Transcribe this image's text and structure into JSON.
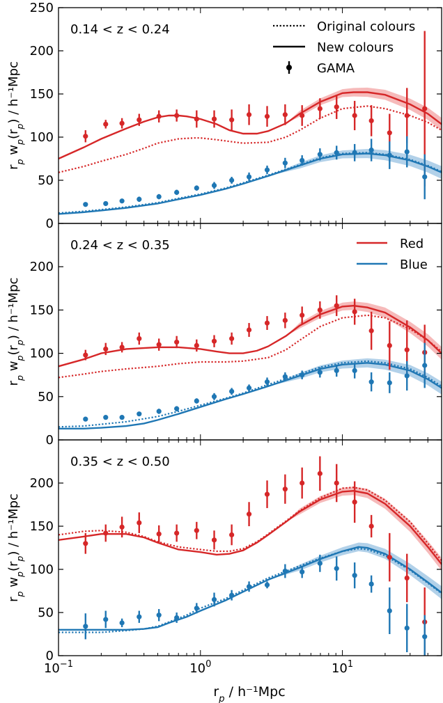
{
  "figure": {
    "ylabel": "r_p w_p(r_p) / h⁻¹Mpc",
    "xlabel": "r_p / h⁻¹Mpc",
    "colors": {
      "red": "#d62728",
      "blue": "#1f77b4",
      "red_band": "#f4a9a9",
      "blue_band": "#9fc6e4",
      "axis": "#000000"
    },
    "legend_style": {
      "entries": [
        "Original colours",
        "New colours",
        "GAMA"
      ],
      "placement": "top-right",
      "panel": 0
    },
    "legend_color": {
      "entries": [
        "Red",
        "Blue"
      ],
      "placement": "top-right",
      "panel": 1
    }
  },
  "chart_data": [
    {
      "type": "line",
      "annotation": "0.14 < z < 0.24",
      "xscale": "log",
      "xlim": [
        0.1,
        50
      ],
      "ylim": [
        0,
        250
      ],
      "yticks": [
        0,
        50,
        100,
        150,
        200,
        250
      ],
      "xtick_labels": [],
      "series": [
        {
          "name": "Red",
          "style": "New colours",
          "color": "red",
          "x": [
            0.1,
            0.15,
            0.2,
            0.3,
            0.4,
            0.5,
            0.6,
            0.7,
            0.8,
            1.0,
            1.3,
            1.6,
            2.0,
            2.5,
            3.0,
            4.0,
            5.0,
            7.0,
            10,
            12,
            15,
            20,
            30,
            40,
            50
          ],
          "y": [
            75,
            88,
            98,
            110,
            118,
            123,
            125,
            125,
            124,
            121,
            115,
            108,
            104,
            104,
            107,
            116,
            127,
            141,
            151,
            152,
            152,
            149,
            138,
            127,
            115
          ]
        },
        {
          "name": "Red",
          "style": "Original colours",
          "color": "red",
          "x": [
            0.1,
            0.15,
            0.2,
            0.3,
            0.4,
            0.5,
            0.7,
            0.9,
            1.0,
            1.3,
            1.6,
            2.0,
            3.0,
            4.0,
            5.0,
            7.0,
            10,
            15,
            20,
            30,
            40,
            50
          ],
          "y": [
            59,
            66,
            72,
            80,
            87,
            93,
            98,
            99,
            99,
            97,
            95,
            93,
            94,
            100,
            108,
            122,
            133,
            136,
            133,
            125,
            117,
            108
          ]
        },
        {
          "name": "Blue",
          "style": "New colours",
          "color": "blue",
          "x": [
            0.1,
            0.15,
            0.2,
            0.3,
            0.5,
            0.7,
            1.0,
            1.5,
            2.0,
            3.0,
            5.0,
            7.0,
            10,
            15,
            20,
            30,
            40,
            50
          ],
          "y": [
            11,
            13,
            15,
            18,
            23,
            28,
            33,
            40,
            46,
            55,
            67,
            75,
            80,
            81,
            79,
            73,
            66,
            59
          ]
        },
        {
          "name": "Blue",
          "style": "Original colours",
          "color": "blue",
          "x": [
            0.1,
            0.15,
            0.2,
            0.3,
            0.5,
            0.7,
            1.0,
            1.5,
            2.0,
            3.0,
            5.0,
            7.0,
            10,
            15,
            20,
            30,
            40,
            50
          ],
          "y": [
            12,
            14,
            16,
            19,
            24,
            29,
            34,
            41,
            47,
            56,
            68,
            76,
            81,
            82,
            80,
            74,
            67,
            60
          ]
        },
        {
          "name": "GAMA",
          "color": "red",
          "kind": "points",
          "x": [
            0.155,
            0.215,
            0.28,
            0.37,
            0.51,
            0.68,
            0.94,
            1.25,
            1.66,
            2.2,
            2.95,
            3.95,
            5.2,
            6.95,
            9.1,
            12.2,
            16.0,
            21.5,
            28.5,
            38
          ],
          "y": [
            101,
            115,
            116,
            120,
            124,
            125,
            121,
            121,
            120,
            126,
            124,
            126,
            125,
            133,
            135,
            125,
            119,
            105,
            125,
            133
          ],
          "yerr": [
            7,
            5,
            6,
            7,
            7,
            7,
            10,
            10,
            12,
            12,
            12,
            12,
            12,
            12,
            14,
            17,
            18,
            22,
            32,
            90
          ]
        },
        {
          "name": "GAMA",
          "color": "blue",
          "kind": "points",
          "x": [
            0.155,
            0.215,
            0.28,
            0.37,
            0.51,
            0.68,
            0.94,
            1.25,
            1.66,
            2.2,
            2.95,
            3.95,
            5.2,
            6.95,
            9.1,
            12.2,
            16.0,
            21.5,
            28.5,
            38
          ],
          "y": [
            22,
            23,
            26,
            28,
            31,
            36,
            41,
            44,
            50,
            54,
            62,
            70,
            73,
            80,
            82,
            82,
            85,
            79,
            83,
            54
          ],
          "yerr": [
            2,
            2,
            2,
            3,
            3,
            3,
            3,
            4,
            4,
            5,
            5,
            6,
            6,
            7,
            8,
            10,
            13,
            16,
            18,
            26
          ]
        }
      ]
    },
    {
      "type": "line",
      "annotation": "0.24 < z < 0.35",
      "xscale": "log",
      "xlim": [
        0.1,
        50
      ],
      "ylim": [
        0,
        250
      ],
      "yticks": [
        0,
        50,
        100,
        150,
        200
      ],
      "xtick_labels": [],
      "series": [
        {
          "name": "Red",
          "style": "New colours",
          "color": "red",
          "x": [
            0.1,
            0.15,
            0.2,
            0.3,
            0.5,
            0.7,
            1.0,
            1.3,
            1.6,
            2.0,
            2.5,
            3.0,
            4.0,
            5.0,
            7.0,
            10,
            12,
            15,
            20,
            30,
            40,
            50
          ],
          "y": [
            85,
            93,
            100,
            105,
            107,
            107,
            105,
            102,
            100,
            100,
            103,
            108,
            120,
            132,
            145,
            154,
            155,
            153,
            147,
            130,
            115,
            100
          ]
        },
        {
          "name": "Red",
          "style": "Original colours",
          "color": "red",
          "x": [
            0.1,
            0.15,
            0.2,
            0.3,
            0.5,
            0.7,
            1.0,
            1.5,
            2.0,
            3.0,
            4.0,
            5.0,
            7.0,
            10,
            15,
            20,
            30,
            40,
            50
          ],
          "y": [
            72,
            76,
            79,
            82,
            85,
            88,
            90,
            90,
            91,
            95,
            104,
            115,
            131,
            141,
            144,
            141,
            128,
            115,
            102
          ]
        },
        {
          "name": "Blue",
          "style": "New colours",
          "color": "blue",
          "x": [
            0.1,
            0.15,
            0.2,
            0.3,
            0.4,
            0.5,
            0.7,
            1.0,
            1.5,
            2.0,
            3.0,
            5.0,
            7.0,
            10,
            15,
            20,
            30,
            40,
            50
          ],
          "y": [
            13,
            13,
            14,
            16,
            19,
            23,
            30,
            38,
            47,
            53,
            62,
            74,
            82,
            87,
            89,
            87,
            80,
            70,
            60
          ]
        },
        {
          "name": "Blue",
          "style": "Original colours",
          "color": "blue",
          "x": [
            0.1,
            0.15,
            0.2,
            0.3,
            0.5,
            0.7,
            1.0,
            1.5,
            2.0,
            3.0,
            5.0,
            7.0,
            10,
            15,
            20,
            30,
            40,
            50
          ],
          "y": [
            15,
            16,
            18,
            21,
            27,
            33,
            40,
            48,
            54,
            64,
            76,
            84,
            89,
            91,
            89,
            82,
            72,
            62
          ]
        },
        {
          "name": "GAMA",
          "color": "red",
          "kind": "points",
          "x": [
            0.155,
            0.215,
            0.28,
            0.37,
            0.51,
            0.68,
            0.94,
            1.25,
            1.66,
            2.2,
            2.95,
            3.95,
            5.2,
            6.95,
            9.1,
            12.2,
            16.0,
            21.5,
            28.5,
            38
          ],
          "y": [
            98,
            105,
            107,
            117,
            110,
            113,
            109,
            114,
            117,
            127,
            135,
            138,
            144,
            150,
            155,
            148,
            126,
            109,
            104,
            101
          ],
          "yerr": [
            6,
            7,
            6,
            7,
            7,
            7,
            7,
            7,
            7,
            8,
            8,
            9,
            10,
            10,
            12,
            15,
            22,
            28,
            34,
            32
          ]
        },
        {
          "name": "GAMA",
          "color": "blue",
          "kind": "points",
          "x": [
            0.155,
            0.215,
            0.28,
            0.37,
            0.51,
            0.68,
            0.94,
            1.25,
            1.66,
            2.2,
            2.95,
            3.95,
            5.2,
            6.95,
            9.1,
            12.2,
            16.0,
            21.5,
            28.5,
            38
          ],
          "y": [
            24,
            26,
            26,
            30,
            33,
            36,
            45,
            50,
            56,
            60,
            67,
            73,
            75,
            78,
            80,
            80,
            67,
            66,
            74,
            86
          ],
          "yerr": [
            2,
            2,
            2,
            2,
            3,
            3,
            3,
            4,
            4,
            4,
            5,
            5,
            5,
            6,
            7,
            9,
            11,
            12,
            17,
            26
          ]
        }
      ]
    },
    {
      "type": "line",
      "annotation": "0.35 < z < 0.50",
      "xscale": "log",
      "xlim": [
        0.1,
        50
      ],
      "ylim": [
        0,
        250
      ],
      "yticks": [
        0,
        50,
        100,
        150,
        200
      ],
      "xtick_labels": [
        "10⁻¹",
        "10⁰",
        "10¹"
      ],
      "series": [
        {
          "name": "Red",
          "style": "New colours",
          "color": "red",
          "x": [
            0.1,
            0.15,
            0.2,
            0.3,
            0.4,
            0.5,
            0.7,
            1.0,
            1.3,
            1.6,
            2.0,
            2.5,
            3.0,
            4.0,
            5.0,
            7.0,
            10,
            12,
            15,
            20,
            30,
            40,
            50
          ],
          "y": [
            134,
            138,
            141,
            141,
            137,
            131,
            123,
            120,
            117,
            118,
            122,
            131,
            140,
            155,
            167,
            181,
            190,
            191,
            188,
            176,
            150,
            126,
            106
          ]
        },
        {
          "name": "Red",
          "style": "Original colours",
          "color": "red",
          "x": [
            0.1,
            0.15,
            0.2,
            0.3,
            0.4,
            0.5,
            0.7,
            1.0,
            1.3,
            1.6,
            2.0,
            2.5,
            3.0,
            4.0,
            5.0,
            7.0,
            10,
            12,
            15,
            20,
            30,
            40,
            50
          ],
          "y": [
            140,
            144,
            145,
            143,
            138,
            132,
            126,
            123,
            121,
            121,
            124,
            132,
            141,
            156,
            168,
            183,
            194,
            195,
            192,
            180,
            155,
            130,
            110
          ]
        },
        {
          "name": "Blue",
          "style": "New colours",
          "color": "blue",
          "x": [
            0.1,
            0.15,
            0.2,
            0.3,
            0.4,
            0.5,
            0.6,
            0.8,
            1.0,
            1.5,
            2.0,
            3.0,
            5.0,
            7.0,
            10,
            13,
            15,
            20,
            30,
            40,
            50
          ],
          "y": [
            30,
            30,
            30,
            30,
            31,
            33,
            38,
            45,
            52,
            64,
            74,
            88,
            102,
            112,
            121,
            126,
            125,
            118,
            100,
            85,
            73
          ]
        },
        {
          "name": "Blue",
          "style": "Original colours",
          "color": "blue",
          "x": [
            0.1,
            0.15,
            0.2,
            0.3,
            0.4,
            0.5,
            0.6,
            0.8,
            1.0,
            1.5,
            2.0,
            3.0,
            5.0,
            7.0,
            10,
            13,
            15,
            20,
            30,
            40,
            50
          ],
          "y": [
            27,
            27,
            27,
            29,
            31,
            34,
            39,
            47,
            55,
            66,
            76,
            90,
            104,
            113,
            121,
            124,
            123,
            116,
            99,
            84,
            72
          ]
        },
        {
          "name": "GAMA",
          "color": "red",
          "kind": "points",
          "x": [
            0.155,
            0.215,
            0.28,
            0.37,
            0.51,
            0.68,
            0.94,
            1.25,
            1.66,
            2.2,
            2.95,
            3.95,
            5.2,
            6.95,
            9.1,
            12.2,
            16.0,
            21.5,
            28.5,
            38
          ],
          "y": [
            130,
            142,
            149,
            154,
            141,
            142,
            145,
            134,
            140,
            164,
            187,
            193,
            200,
            211,
            200,
            178,
            150,
            114,
            90,
            39
          ],
          "yerr": [
            12,
            10,
            12,
            12,
            10,
            10,
            10,
            11,
            12,
            14,
            16,
            17,
            18,
            20,
            22,
            24,
            13,
            28,
            28,
            40
          ]
        },
        {
          "name": "GAMA",
          "color": "blue",
          "kind": "points",
          "x": [
            0.155,
            0.215,
            0.28,
            0.37,
            0.51,
            0.68,
            0.94,
            1.25,
            1.66,
            2.2,
            2.95,
            3.95,
            5.2,
            6.95,
            9.1,
            12.2,
            16.0,
            21.5,
            28.5,
            38
          ],
          "y": [
            34,
            42,
            38,
            45,
            47,
            44,
            55,
            65,
            70,
            80,
            82,
            98,
            97,
            107,
            101,
            93,
            83,
            52,
            32,
            22
          ],
          "yerr": [
            15,
            10,
            5,
            7,
            7,
            6,
            6,
            8,
            6,
            6,
            4,
            8,
            7,
            10,
            14,
            15,
            10,
            27,
            28,
            25
          ]
        }
      ]
    }
  ]
}
